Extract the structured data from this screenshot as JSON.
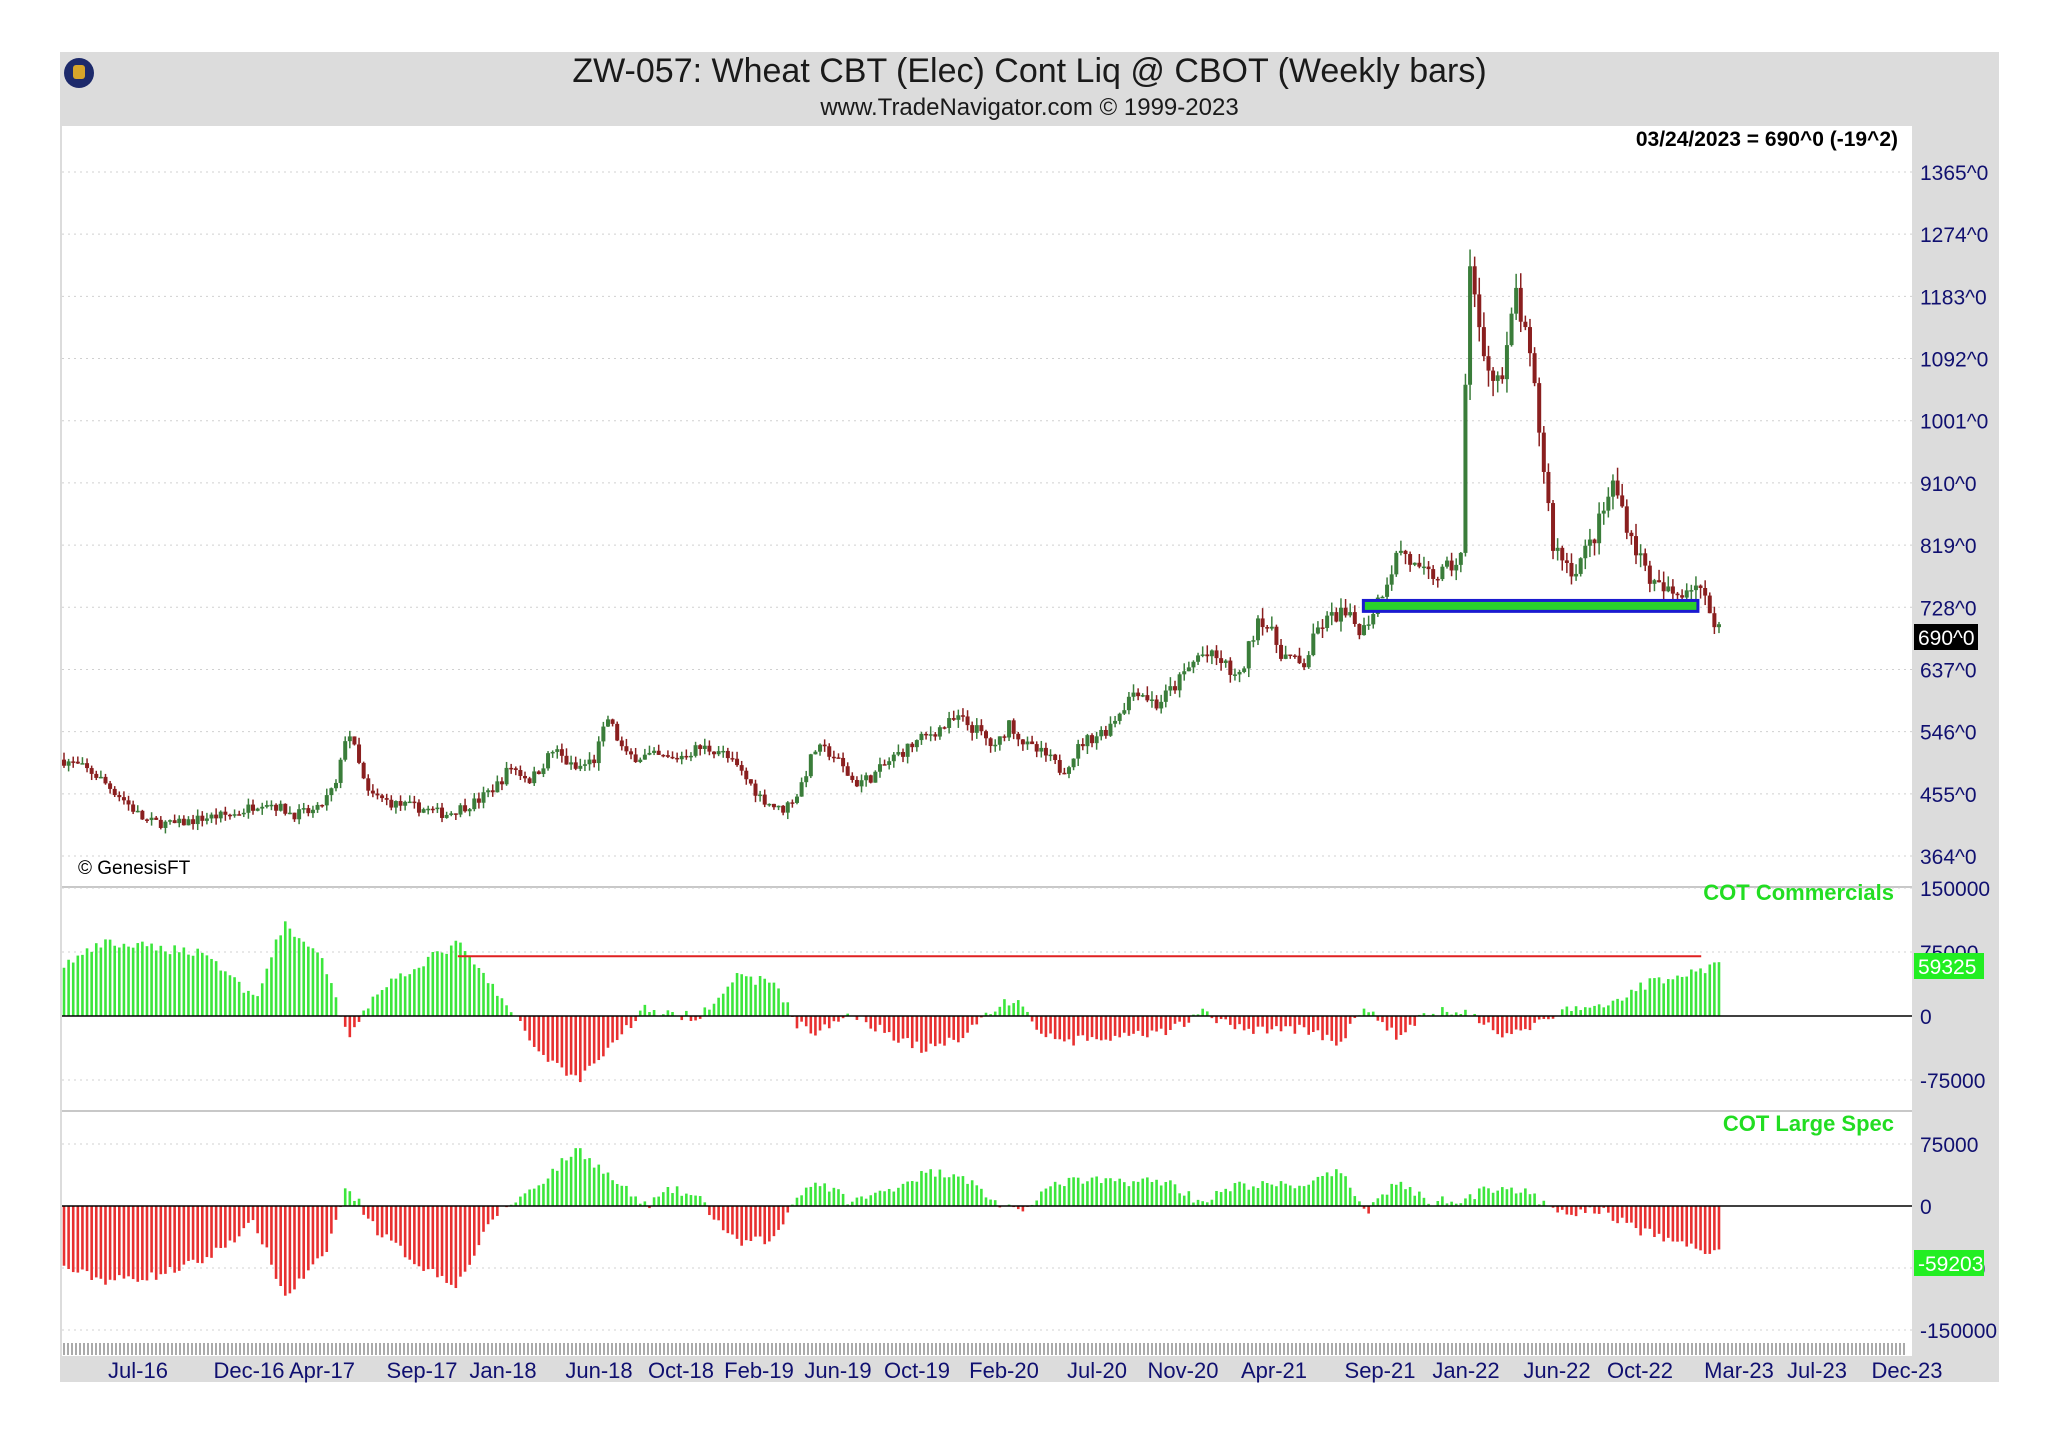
{
  "header": {
    "title": "ZW-057:  Wheat CBT (Elec) Cont Liq @ CBOT  (Weekly bars)",
    "subtitle": "www.TradeNavigator.com © 1999-2023"
  },
  "price_panel": {
    "last_info": "03/24/2023 = 690^0 (-19^2)",
    "last_price_tag": "690^0",
    "watermark": "© GenesisFT",
    "y_ticks": [
      "1365^0",
      "1274^0",
      "1183^0",
      "1092^0",
      "1001^0",
      "910^0",
      "819^0",
      "728^0",
      "637^0",
      "546^0",
      "455^0",
      "364^0"
    ],
    "support_box": {
      "from": "Sep-21",
      "to": "Feb-23",
      "low": 722,
      "high": 738
    }
  },
  "cot_commercials": {
    "label": "COT Commercials",
    "value_tag": "59325",
    "y_ticks": [
      "150000",
      "75000",
      "0",
      "-75000"
    ],
    "reference_line": 70000
  },
  "cot_large_spec": {
    "label": "COT Large Spec",
    "value_tag": "-59203",
    "y_ticks": [
      "75000",
      "0",
      "-75000",
      "-150000"
    ]
  },
  "x_axis": {
    "labels": [
      "Jul-16",
      "Dec-16",
      "Apr-17",
      "Sep-17",
      "Jan-18",
      "Jun-18",
      "Oct-18",
      "Feb-19",
      "Jun-19",
      "Oct-19",
      "Feb-20",
      "Jul-20",
      "Nov-20",
      "Apr-21",
      "Sep-21",
      "Jan-22",
      "Jun-22",
      "Oct-22",
      "Mar-23",
      "Jul-23",
      "Dec-23"
    ]
  },
  "colors": {
    "up": "#3ce63c",
    "down": "#e83030",
    "candle_up": "#3a7d3a",
    "candle_down": "#8a1f1f",
    "ref_line": "#e02020",
    "support_fill": "#2ad12a",
    "support_border": "#1a1ad0",
    "tag_bg": "#22ee22"
  },
  "chart_data": [
    {
      "type": "candlestick",
      "name": "Wheat weekly price",
      "x_start": "2016-05-01",
      "x_end": "2023-03-24",
      "interval": "weekly",
      "anchors": [
        [
          "2016-05-01",
          505
        ],
        [
          "2016-06-15",
          485
        ],
        [
          "2016-07-25",
          452
        ],
        [
          "2016-09-01",
          415
        ],
        [
          "2016-10-15",
          410
        ],
        [
          "2016-12-01",
          420
        ],
        [
          "2017-01-15",
          425
        ],
        [
          "2017-03-01",
          445
        ],
        [
          "2017-04-15",
          425
        ],
        [
          "2017-05-20",
          430
        ],
        [
          "2017-06-20",
          470
        ],
        [
          "2017-07-05",
          555
        ],
        [
          "2017-08-05",
          455
        ],
        [
          "2017-09-15",
          440
        ],
        [
          "2017-10-20",
          435
        ],
        [
          "2017-12-01",
          425
        ],
        [
          "2018-01-20",
          445
        ],
        [
          "2018-02-20",
          470
        ],
        [
          "2018-03-10",
          495
        ],
        [
          "2018-04-10",
          475
        ],
        [
          "2018-05-15",
          520
        ],
        [
          "2018-06-15",
          490
        ],
        [
          "2018-07-15",
          505
        ],
        [
          "2018-08-05",
          565
        ],
        [
          "2018-09-01",
          510
        ],
        [
          "2018-10-10",
          510
        ],
        [
          "2018-11-10",
          505
        ],
        [
          "2018-12-20",
          522
        ],
        [
          "2019-01-20",
          520
        ],
        [
          "2019-02-20",
          490
        ],
        [
          "2019-03-25",
          450
        ],
        [
          "2019-04-25",
          430
        ],
        [
          "2019-05-20",
          455
        ],
        [
          "2019-06-15",
          520
        ],
        [
          "2019-07-10",
          515
        ],
        [
          "2019-08-15",
          470
        ],
        [
          "2019-09-10",
          480
        ],
        [
          "2019-10-15",
          510
        ],
        [
          "2019-12-10",
          545
        ],
        [
          "2020-01-20",
          565
        ],
        [
          "2020-02-20",
          545
        ],
        [
          "2020-03-15",
          520
        ],
        [
          "2020-04-05",
          560
        ],
        [
          "2020-05-01",
          525
        ],
        [
          "2020-06-01",
          510
        ],
        [
          "2020-06-25",
          488
        ],
        [
          "2020-07-25",
          530
        ],
        [
          "2020-09-01",
          550
        ],
        [
          "2020-10-15",
          610
        ],
        [
          "2020-11-15",
          585
        ],
        [
          "2020-12-15",
          615
        ],
        [
          "2021-01-20",
          660
        ],
        [
          "2021-02-20",
          650
        ],
        [
          "2021-03-20",
          620
        ],
        [
          "2021-04-20",
          720
        ],
        [
          "2021-05-25",
          660
        ],
        [
          "2021-06-25",
          640
        ],
        [
          "2021-07-20",
          700
        ],
        [
          "2021-08-20",
          720
        ],
        [
          "2021-09-25",
          695
        ],
        [
          "2021-10-20",
          745
        ],
        [
          "2021-11-20",
          815
        ],
        [
          "2021-12-20",
          775
        ],
        [
          "2022-01-20",
          775
        ],
        [
          "2022-02-20",
          800
        ],
        [
          "2022-03-05",
          1250
        ],
        [
          "2022-03-25",
          1090
        ],
        [
          "2022-04-25",
          1060
        ],
        [
          "2022-05-15",
          1190
        ],
        [
          "2022-06-10",
          1060
        ],
        [
          "2022-07-10",
          820
        ],
        [
          "2022-08-10",
          780
        ],
        [
          "2022-09-10",
          830
        ],
        [
          "2022-10-10",
          910
        ],
        [
          "2022-11-10",
          820
        ],
        [
          "2022-12-10",
          760
        ],
        [
          "2023-01-10",
          745
        ],
        [
          "2023-02-10",
          765
        ],
        [
          "2023-03-24",
          690
        ]
      ],
      "ylim": [
        364,
        1365
      ]
    },
    {
      "type": "bar",
      "name": "COT Commercials",
      "x_start": "2016-05-01",
      "x_end": "2023-03-24",
      "interval": "weekly",
      "anchors": [
        [
          "2016-05-01",
          60000
        ],
        [
          "2016-07-01",
          85000
        ],
        [
          "2016-09-15",
          80000
        ],
        [
          "2016-12-01",
          75000
        ],
        [
          "2017-02-15",
          20000
        ],
        [
          "2017-04-01",
          110000
        ],
        [
          "2017-06-01",
          60000
        ],
        [
          "2017-07-05",
          -25000
        ],
        [
          "2017-08-20",
          30000
        ],
        [
          "2017-10-20",
          60000
        ],
        [
          "2017-12-20",
          85000
        ],
        [
          "2018-02-15",
          30000
        ],
        [
          "2018-03-15",
          0
        ],
        [
          "2018-04-20",
          -40000
        ],
        [
          "2018-06-20",
          -75000
        ],
        [
          "2018-08-15",
          -30000
        ],
        [
          "2018-10-01",
          10000
        ],
        [
          "2018-11-10",
          0
        ],
        [
          "2018-12-20",
          0
        ],
        [
          "2019-02-15",
          45000
        ],
        [
          "2019-04-15",
          40000
        ],
        [
          "2019-05-20",
          -10000
        ],
        [
          "2019-06-20",
          -20000
        ],
        [
          "2019-08-10",
          5000
        ],
        [
          "2019-09-20",
          -15000
        ],
        [
          "2019-12-01",
          -40000
        ],
        [
          "2020-01-20",
          -25000
        ],
        [
          "2020-03-15",
          10000
        ],
        [
          "2020-04-20",
          20000
        ],
        [
          "2020-05-20",
          -20000
        ],
        [
          "2020-07-01",
          -30000
        ],
        [
          "2020-09-20",
          -25000
        ],
        [
          "2020-12-01",
          -20000
        ],
        [
          "2021-01-20",
          5000
        ],
        [
          "2021-03-20",
          -15000
        ],
        [
          "2021-06-20",
          -15000
        ],
        [
          "2021-08-20",
          -30000
        ],
        [
          "2021-10-01",
          10000
        ],
        [
          "2021-11-15",
          -25000
        ],
        [
          "2022-01-01",
          5000
        ],
        [
          "2022-03-01",
          5000
        ],
        [
          "2022-04-20",
          -20000
        ],
        [
          "2022-06-01",
          -15000
        ],
        [
          "2022-07-20",
          5000
        ],
        [
          "2022-09-20",
          10000
        ],
        [
          "2022-11-20",
          35000
        ],
        [
          "2023-01-20",
          50000
        ],
        [
          "2023-03-24",
          59325
        ]
      ],
      "ylim": [
        -75000,
        150000
      ]
    },
    {
      "type": "bar",
      "name": "COT Large Spec",
      "x_start": "2016-05-01",
      "x_end": "2023-03-24",
      "interval": "weekly",
      "anchors": [
        [
          "2016-05-01",
          -75000
        ],
        [
          "2016-07-01",
          -90000
        ],
        [
          "2016-09-15",
          -85000
        ],
        [
          "2016-12-01",
          -65000
        ],
        [
          "2017-02-15",
          -20000
        ],
        [
          "2017-04-01",
          -110000
        ],
        [
          "2017-06-01",
          -60000
        ],
        [
          "2017-07-05",
          25000
        ],
        [
          "2017-08-20",
          -30000
        ],
        [
          "2017-10-20",
          -70000
        ],
        [
          "2017-12-20",
          -95000
        ],
        [
          "2018-02-15",
          -10000
        ],
        [
          "2018-03-15",
          5000
        ],
        [
          "2018-04-20",
          25000
        ],
        [
          "2018-06-20",
          70000
        ],
        [
          "2018-08-15",
          30000
        ],
        [
          "2018-10-01",
          0
        ],
        [
          "2018-11-10",
          20000
        ],
        [
          "2018-12-20",
          10000
        ],
        [
          "2019-02-15",
          -45000
        ],
        [
          "2019-04-15",
          -40000
        ],
        [
          "2019-05-20",
          15000
        ],
        [
          "2019-06-20",
          30000
        ],
        [
          "2019-08-10",
          5000
        ],
        [
          "2019-09-20",
          15000
        ],
        [
          "2019-12-01",
          40000
        ],
        [
          "2020-01-20",
          40000
        ],
        [
          "2020-03-15",
          5000
        ],
        [
          "2020-04-20",
          -10000
        ],
        [
          "2020-05-20",
          15000
        ],
        [
          "2020-07-01",
          30000
        ],
        [
          "2020-09-20",
          30000
        ],
        [
          "2020-12-01",
          30000
        ],
        [
          "2021-01-20",
          5000
        ],
        [
          "2021-03-20",
          25000
        ],
        [
          "2021-06-20",
          25000
        ],
        [
          "2021-08-20",
          40000
        ],
        [
          "2021-10-01",
          -5000
        ],
        [
          "2021-11-15",
          30000
        ],
        [
          "2022-01-01",
          5000
        ],
        [
          "2022-03-01",
          10000
        ],
        [
          "2022-04-20",
          25000
        ],
        [
          "2022-06-01",
          15000
        ],
        [
          "2022-07-20",
          -10000
        ],
        [
          "2022-09-20",
          -5000
        ],
        [
          "2022-11-20",
          -30000
        ],
        [
          "2023-01-20",
          -45000
        ],
        [
          "2023-03-24",
          -59203
        ]
      ],
      "ylim": [
        -150000,
        75000
      ]
    }
  ]
}
